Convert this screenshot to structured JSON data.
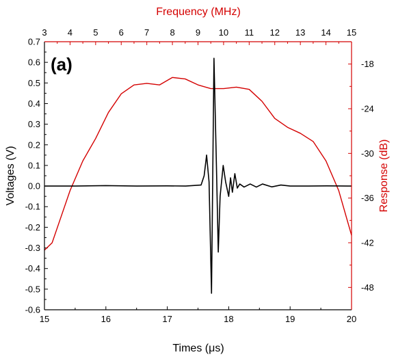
{
  "colors": {
    "background": "#ffffff",
    "time_trace": "#000000",
    "frequency_trace": "#d40000",
    "axis_left": "#000000",
    "axis_right": "#d40000"
  },
  "chart_data": {
    "type": "line",
    "panel_label": "(a)",
    "axes": {
      "bottom": {
        "label_prefix": "Times (",
        "label_mu": "μ",
        "label_suffix": "s)",
        "range": [
          15,
          20
        ],
        "ticks": [
          "15",
          "16",
          "17",
          "18",
          "19",
          "20"
        ]
      },
      "left": {
        "label": "Voltages (V)",
        "range": [
          -0.6,
          0.7
        ],
        "ticks": [
          "-0.6",
          "-0.5",
          "-0.4",
          "-0.3",
          "-0.2",
          "-0.1",
          "0.0",
          "0.1",
          "0.2",
          "0.3",
          "0.4",
          "0.5",
          "0.6",
          "0.7"
        ]
      },
      "top": {
        "label": "Frequency (MHz)",
        "range": [
          3,
          15
        ],
        "ticks": [
          "3",
          "4",
          "5",
          "6",
          "7",
          "8",
          "9",
          "10",
          "11",
          "12",
          "13",
          "14",
          "15"
        ]
      },
      "right": {
        "label": "Response (dB)",
        "range": [
          -51,
          -15
        ],
        "ticks": [
          "-18",
          "-24",
          "-30",
          "-36",
          "-42",
          "-48"
        ]
      }
    },
    "series": [
      {
        "role": "time-domain pulse (bottom / left axes)",
        "color": "#000000",
        "points": [
          [
            15.0,
            0.0
          ],
          [
            15.5,
            0.0
          ],
          [
            16.0,
            0.002
          ],
          [
            16.5,
            0.0
          ],
          [
            17.0,
            0.001
          ],
          [
            17.3,
            0.0
          ],
          [
            17.55,
            0.005
          ],
          [
            17.6,
            0.05
          ],
          [
            17.64,
            0.15
          ],
          [
            17.68,
            0.02
          ],
          [
            17.72,
            -0.52
          ],
          [
            17.76,
            0.62
          ],
          [
            17.8,
            0.1
          ],
          [
            17.83,
            -0.32
          ],
          [
            17.86,
            -0.05
          ],
          [
            17.91,
            0.1
          ],
          [
            17.95,
            0.02
          ],
          [
            18.0,
            -0.05
          ],
          [
            18.03,
            0.04
          ],
          [
            18.06,
            -0.03
          ],
          [
            18.1,
            0.06
          ],
          [
            18.14,
            -0.01
          ],
          [
            18.18,
            0.01
          ],
          [
            18.25,
            -0.005
          ],
          [
            18.35,
            0.01
          ],
          [
            18.45,
            -0.005
          ],
          [
            18.55,
            0.01
          ],
          [
            18.7,
            -0.004
          ],
          [
            18.85,
            0.005
          ],
          [
            19.0,
            0.0
          ],
          [
            19.3,
            0.0
          ],
          [
            19.6,
            0.001
          ],
          [
            20.0,
            0.0
          ]
        ]
      },
      {
        "role": "frequency response (top / right axes)",
        "color": "#d40000",
        "points": [
          [
            3.0,
            -43.0
          ],
          [
            3.3,
            -42.0
          ],
          [
            3.6,
            -39.0
          ],
          [
            4.0,
            -35.0
          ],
          [
            4.5,
            -31.0
          ],
          [
            5.0,
            -28.0
          ],
          [
            5.5,
            -24.5
          ],
          [
            6.0,
            -22.0
          ],
          [
            6.5,
            -20.8
          ],
          [
            7.0,
            -20.6
          ],
          [
            7.5,
            -20.8
          ],
          [
            8.0,
            -19.8
          ],
          [
            8.5,
            -20.0
          ],
          [
            9.0,
            -20.8
          ],
          [
            9.5,
            -21.3
          ],
          [
            10.0,
            -21.3
          ],
          [
            10.5,
            -21.1
          ],
          [
            11.0,
            -21.4
          ],
          [
            11.5,
            -23.0
          ],
          [
            12.0,
            -25.3
          ],
          [
            12.5,
            -26.5
          ],
          [
            13.0,
            -27.3
          ],
          [
            13.5,
            -28.4
          ],
          [
            14.0,
            -31.0
          ],
          [
            14.5,
            -35.0
          ],
          [
            15.0,
            -41.0
          ]
        ]
      }
    ]
  }
}
